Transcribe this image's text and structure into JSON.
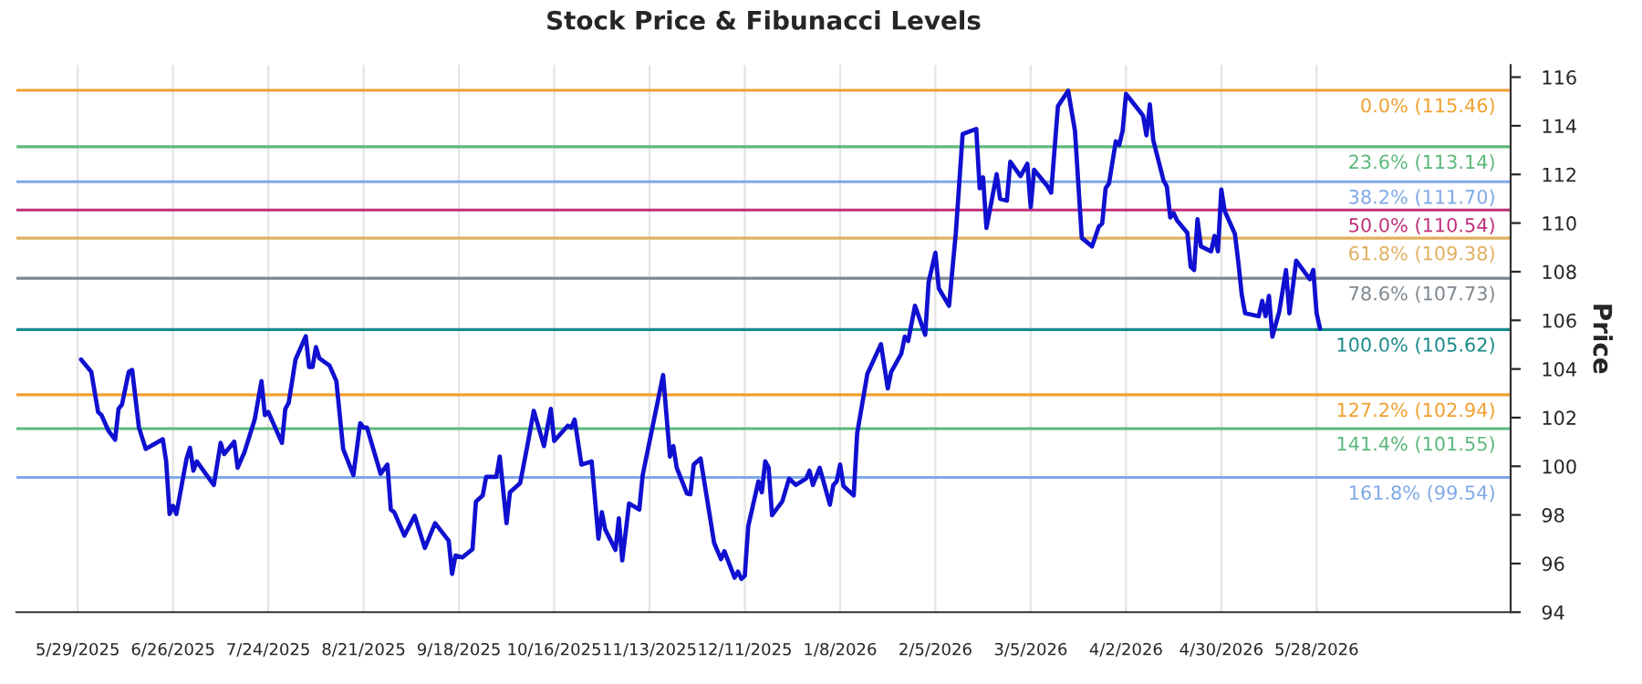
{
  "chart_data": {
    "type": "line",
    "title": "Stock Price & Fibunacci Levels",
    "ylabel": "Price",
    "x": [
      "2025-05-30",
      "2025-06-02",
      "2025-06-04",
      "2025-06-05",
      "2025-06-07",
      "2025-06-09",
      "2025-06-10",
      "2025-06-11",
      "2025-06-13",
      "2025-06-14",
      "2025-06-16",
      "2025-06-18",
      "2025-06-23",
      "2025-06-24",
      "2025-06-25",
      "2025-06-26",
      "2025-06-27",
      "2025-06-30",
      "2025-07-01",
      "2025-07-02",
      "2025-07-03",
      "2025-07-08",
      "2025-07-10",
      "2025-07-11",
      "2025-07-14",
      "2025-07-15",
      "2025-07-17",
      "2025-07-20",
      "2025-07-22",
      "2025-07-23",
      "2025-07-24",
      "2025-07-28",
      "2025-07-29",
      "2025-07-30",
      "2025-08-01",
      "2025-08-04",
      "2025-08-05",
      "2025-08-06",
      "2025-08-07",
      "2025-08-08",
      "2025-08-11",
      "2025-08-13",
      "2025-08-15",
      "2025-08-18",
      "2025-08-20",
      "2025-08-21",
      "2025-08-22",
      "2025-08-26",
      "2025-08-28",
      "2025-08-29",
      "2025-08-30",
      "2025-09-02",
      "2025-09-05",
      "2025-09-08",
      "2025-09-11",
      "2025-09-15",
      "2025-09-16",
      "2025-09-17",
      "2025-09-19",
      "2025-09-22",
      "2025-09-23",
      "2025-09-25",
      "2025-09-26",
      "2025-09-29",
      "2025-09-30",
      "2025-10-02",
      "2025-10-03",
      "2025-10-06",
      "2025-10-08",
      "2025-10-10",
      "2025-10-13",
      "2025-10-15",
      "2025-10-16",
      "2025-10-20",
      "2025-10-21",
      "2025-10-22",
      "2025-10-24",
      "2025-10-27",
      "2025-10-29",
      "2025-10-30",
      "2025-10-31",
      "2025-11-03",
      "2025-11-04",
      "2025-11-05",
      "2025-11-07",
      "2025-11-10",
      "2025-11-11",
      "2025-11-17",
      "2025-11-19",
      "2025-11-20",
      "2025-11-21",
      "2025-11-24",
      "2025-11-25",
      "2025-11-26",
      "2025-11-28",
      "2025-12-02",
      "2025-12-04",
      "2025-12-05",
      "2025-12-08",
      "2025-12-09",
      "2025-12-10",
      "2025-12-11",
      "2025-12-12",
      "2025-12-15",
      "2025-12-16",
      "2025-12-17",
      "2025-12-18",
      "2025-12-19",
      "2025-12-22",
      "2025-12-24",
      "2025-12-26",
      "2025-12-29",
      "2025-12-30",
      "2025-12-31",
      "2026-01-02",
      "2026-01-05",
      "2026-01-06",
      "2026-01-07",
      "2026-01-08",
      "2026-01-09",
      "2026-01-12",
      "2026-01-13",
      "2026-01-16",
      "2026-01-20",
      "2026-01-22",
      "2026-01-23",
      "2026-01-26",
      "2026-01-27",
      "2026-01-28",
      "2026-01-30",
      "2026-02-02",
      "2026-02-03",
      "2026-02-05",
      "2026-02-06",
      "2026-02-09",
      "2026-02-11",
      "2026-02-13",
      "2026-02-17",
      "2026-02-18",
      "2026-02-19",
      "2026-02-20",
      "2026-02-23",
      "2026-02-24",
      "2026-02-26",
      "2026-02-27",
      "2026-03-02",
      "2026-03-04",
      "2026-03-05",
      "2026-03-06",
      "2026-03-10",
      "2026-03-11",
      "2026-03-13",
      "2026-03-16",
      "2026-03-18",
      "2026-03-20",
      "2026-03-23",
      "2026-03-25",
      "2026-03-26",
      "2026-03-27",
      "2026-03-28",
      "2026-03-30",
      "2026-03-31",
      "2026-04-01",
      "2026-04-02",
      "2026-04-07",
      "2026-04-08",
      "2026-04-09",
      "2026-04-10",
      "2026-04-13",
      "2026-04-14",
      "2026-04-15",
      "2026-04-16",
      "2026-04-17",
      "2026-04-20",
      "2026-04-21",
      "2026-04-22",
      "2026-04-23",
      "2026-04-24",
      "2026-04-27",
      "2026-04-28",
      "2026-04-29",
      "2026-04-30",
      "2026-05-01",
      "2026-05-04",
      "2026-05-05",
      "2026-05-06",
      "2026-05-07",
      "2026-05-11",
      "2026-05-12",
      "2026-05-13",
      "2026-05-14",
      "2026-05-15",
      "2026-05-17",
      "2026-05-19",
      "2026-05-20",
      "2026-05-22",
      "2026-05-26",
      "2026-05-27",
      "2026-05-28",
      "2026-05-29"
    ],
    "series": [
      {
        "color": "#1010d0",
        "values": [
          104.39,
          103.88,
          102.23,
          102.1,
          101.47,
          101.09,
          102.36,
          102.53,
          103.88,
          103.96,
          101.59,
          100.71,
          101.11,
          100.2,
          98.04,
          98.37,
          98.04,
          100.32,
          100.76,
          99.82,
          100.2,
          99.23,
          100.96,
          100.5,
          101.01,
          99.94,
          100.58,
          101.92,
          103.5,
          102.1,
          102.23,
          100.96,
          102.36,
          102.61,
          104.39,
          105.35,
          104.08,
          104.08,
          104.9,
          104.44,
          104.14,
          103.5,
          100.71,
          99.64,
          101.77,
          101.59,
          101.59,
          99.69,
          100.07,
          98.22,
          98.11,
          97.15,
          97.96,
          96.64,
          97.66,
          96.94,
          95.57,
          96.33,
          96.25,
          96.59,
          98.55,
          98.8,
          99.56,
          99.56,
          100.4,
          97.66,
          98.93,
          99.31,
          100.76,
          102.28,
          100.83,
          102.36,
          101.04,
          101.67,
          101.59,
          101.92,
          100.07,
          100.2,
          97.02,
          98.11,
          97.4,
          96.56,
          97.86,
          96.13,
          98.47,
          98.22,
          99.64,
          103.75,
          100.4,
          100.83,
          99.94,
          98.88,
          98.85,
          100.07,
          100.32,
          96.84,
          96.18,
          96.51,
          95.42,
          95.67,
          95.37,
          95.5,
          97.53,
          99.38,
          98.93,
          100.2,
          99.94,
          97.99,
          98.55,
          99.49,
          99.23,
          99.49,
          99.82,
          99.23,
          99.94,
          98.42,
          99.23,
          99.38,
          100.07,
          99.18,
          98.8,
          101.34,
          103.8,
          105.02,
          103.2,
          103.88,
          104.64,
          105.33,
          105.15,
          106.6,
          105.41,
          107.57,
          108.78,
          107.31,
          106.6,
          109.6,
          113.66,
          113.87,
          111.43,
          111.88,
          109.8,
          112.01,
          111.0,
          110.92,
          112.52,
          111.93,
          112.44,
          110.66,
          112.19,
          111.5,
          111.25,
          114.81,
          115.44,
          113.79,
          109.39,
          109.04,
          109.85,
          109.98,
          111.43,
          111.63,
          113.36,
          113.21,
          113.79,
          115.31,
          114.42,
          113.61,
          114.88,
          113.41,
          111.76,
          111.5,
          110.23,
          110.41,
          110.11,
          109.6,
          108.2,
          108.07,
          110.16,
          109.04,
          108.84,
          109.47,
          108.84,
          111.38,
          110.49,
          109.55,
          108.38,
          107.06,
          106.29,
          106.17,
          106.8,
          106.17,
          107.01,
          105.33,
          106.35,
          108.07,
          106.29,
          108.45,
          107.69,
          108.07,
          106.29,
          105.66
        ]
      }
    ],
    "xlim": [
      "2025-05-11",
      "2026-07-24"
    ],
    "xticks": [
      {
        "value": "2025-05-29",
        "label": "5/29/2025"
      },
      {
        "value": "2025-06-26",
        "label": "6/26/2025"
      },
      {
        "value": "2025-07-24",
        "label": "7/24/2025"
      },
      {
        "value": "2025-08-21",
        "label": "8/21/2025"
      },
      {
        "value": "2025-09-18",
        "label": "9/18/2025"
      },
      {
        "value": "2025-10-16",
        "label": "10/16/2025"
      },
      {
        "value": "2025-11-13",
        "label": "11/13/2025"
      },
      {
        "value": "2025-12-11",
        "label": "12/11/2025"
      },
      {
        "value": "2026-01-08",
        "label": "1/8/2026"
      },
      {
        "value": "2026-02-05",
        "label": "2/5/2026"
      },
      {
        "value": "2026-03-05",
        "label": "3/5/2026"
      },
      {
        "value": "2026-04-02",
        "label": "4/2/2026"
      },
      {
        "value": "2026-04-30",
        "label": "4/30/2026"
      },
      {
        "value": "2026-05-28",
        "label": "5/28/2026"
      }
    ],
    "ylim": [
      94,
      116.5
    ],
    "yticks": [
      94,
      96,
      98,
      100,
      102,
      104,
      106,
      108,
      110,
      112,
      114,
      116
    ],
    "grid": "x",
    "marker": "none",
    "line_style": "solid",
    "ref_lines": [
      {
        "axis": "y",
        "value": 115.46,
        "label": "0.0% (115.46)",
        "color": "#f0a030"
      },
      {
        "axis": "y",
        "value": 113.14,
        "label": "23.6% (113.14)",
        "color": "#5cb87a"
      },
      {
        "axis": "y",
        "value": 111.7,
        "label": "38.2% (111.70)",
        "color": "#7fa8e8"
      },
      {
        "axis": "y",
        "value": 110.54,
        "label": "50.0% (110.54)",
        "color": "#c0307a"
      },
      {
        "axis": "y",
        "value": 109.38,
        "label": "61.8% (109.38)",
        "color": "#e0b060"
      },
      {
        "axis": "y",
        "value": 107.73,
        "label": "78.6% (107.73)",
        "color": "#7f8890"
      },
      {
        "axis": "y",
        "value": 105.62,
        "label": "100.0% (105.62)",
        "color": "#1a8a8a"
      },
      {
        "axis": "y",
        "value": 102.94,
        "label": "127.2% (102.94)",
        "color": "#f0a030"
      },
      {
        "axis": "y",
        "value": 101.55,
        "label": "141.4% (101.55)",
        "color": "#5cb87a"
      },
      {
        "axis": "y",
        "value": 99.54,
        "label": "161.8% (99.54)",
        "color": "#7fa8e8"
      }
    ]
  }
}
